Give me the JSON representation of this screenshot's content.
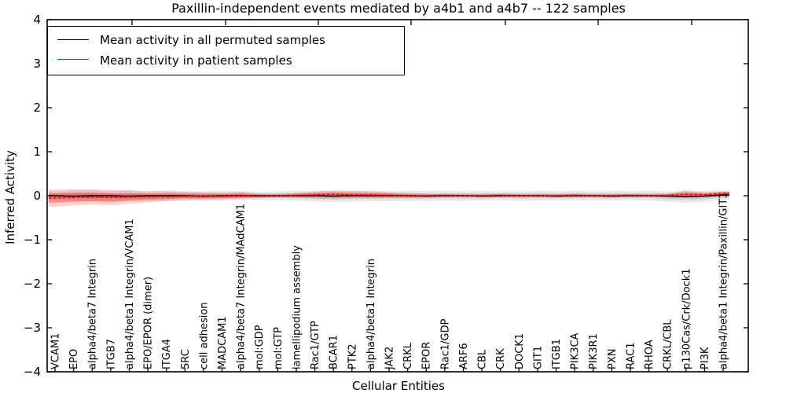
{
  "chart_data": {
    "type": "line",
    "title": "Paxillin-independent events mediated by a4b1 and a4b7 -- 122 samples",
    "xlabel": "Cellular Entities",
    "ylabel": "Inferred Activity",
    "ylim": [
      -4,
      4
    ],
    "ytick_labels": [
      "4",
      "3",
      "2",
      "1",
      "0",
      "−1",
      "−2",
      "−3",
      "−4"
    ],
    "ytick_values": [
      4,
      3,
      2,
      1,
      0,
      -1,
      -2,
      -3,
      -4
    ],
    "grid": false,
    "legend_position": "upper left",
    "legend": [
      {
        "label": "Mean activity in all permuted samples",
        "color": "#000000",
        "style": "solid"
      },
      {
        "label": "Mean activity in patient samples",
        "color": "#ff0000",
        "style": "solid"
      }
    ],
    "colors": {
      "permuted_line": "#000000",
      "patient_line": "#ff0000",
      "permuted_band": "rgba(0,0,0,0.09)",
      "permuted_band_inner": "rgba(0,0,0,0.10)",
      "patient_band": "rgba(255,0,0,0.18)",
      "patient_band_inner": "rgba(255,0,0,0.30)"
    },
    "categories": [
      "VCAM1",
      "EPO",
      "alpha4/beta7 Integrin",
      "ITGB7",
      "alpha4/beta1 Integrin/VCAM1",
      "EPO/EPOR (dimer)",
      "ITGA4",
      "SRC",
      "cell adhesion",
      "MADCAM1",
      "alpha4/beta7 Integrin/MAdCAM1",
      "mol:GDP",
      "mol:GTP",
      "lamellipodium assembly",
      "Rac1/GTP",
      "BCAR1",
      "PTK2",
      "alpha4/beta1 Integrin",
      "JAK2",
      "CRKL",
      "EPOR",
      "Rac1/GDP",
      "ARF6",
      "CBL",
      "CRK",
      "DOCK1",
      "GIT1",
      "ITGB1",
      "PIK3CA",
      "PIK3R1",
      "PXN",
      "RAC1",
      "RHOA",
      "CRKL/CBL",
      "p130Cas/Crk/Dock1",
      "PI3K",
      "alpha4/beta1 Integrin/Paxillin/GIT1"
    ],
    "series": [
      {
        "name": "Mean activity in all permuted samples",
        "values": [
          0,
          -0.01,
          0,
          0,
          -0.01,
          0,
          0,
          0,
          -0.01,
          0,
          0,
          0,
          0,
          0,
          0,
          -0.01,
          0,
          0,
          0,
          0,
          -0.01,
          0,
          0,
          -0.01,
          0,
          0,
          0,
          -0.01,
          0,
          0,
          -0.01,
          0,
          0,
          -0.01,
          -0.02,
          -0.01,
          0.02
        ],
        "band_upper": [
          0.1,
          0.12,
          0.13,
          0.1,
          0.12,
          0.1,
          0.12,
          0.1,
          0.1,
          0.11,
          0.1,
          0.09,
          0.1,
          0.11,
          0.1,
          0.11,
          0.1,
          0.11,
          0.1,
          0.11,
          0.1,
          0.11,
          0.1,
          0.11,
          0.1,
          0.1,
          0.11,
          0.1,
          0.11,
          0.1,
          0.11,
          0.1,
          0.11,
          0.1,
          0.1,
          0.11,
          0.12
        ],
        "band_lower": [
          -0.1,
          -0.12,
          -0.13,
          -0.14,
          -0.12,
          -0.13,
          -0.12,
          -0.11,
          -0.1,
          -0.11,
          -0.1,
          -0.09,
          -0.1,
          -0.11,
          -0.13,
          -0.15,
          -0.14,
          -0.12,
          -0.13,
          -0.12,
          -0.12,
          -0.11,
          -0.12,
          -0.11,
          -0.1,
          -0.12,
          -0.11,
          -0.1,
          -0.11,
          -0.1,
          -0.11,
          -0.1,
          -0.11,
          -0.14,
          -0.16,
          -0.14,
          -0.1
        ]
      },
      {
        "name": "Mean activity in patient samples",
        "values": [
          -0.05,
          -0.04,
          -0.03,
          -0.04,
          -0.03,
          -0.02,
          -0.02,
          -0.01,
          -0.01,
          -0.01,
          0,
          -0.01,
          0,
          0.01,
          0.02,
          0.03,
          0.02,
          0.02,
          0.01,
          0,
          0,
          0.01,
          0,
          0,
          0.01,
          0,
          0,
          0,
          0.01,
          0,
          0,
          0.01,
          0,
          0.01,
          0.03,
          0.02,
          0.06
        ],
        "band_upper": [
          0.14,
          0.15,
          0.14,
          0.13,
          0.12,
          0.1,
          0.1,
          0.09,
          0.08,
          0.07,
          0.09,
          0.05,
          0.04,
          0.06,
          0.1,
          0.12,
          0.11,
          0.1,
          0.08,
          0.06,
          0.05,
          0.04,
          0.04,
          0.04,
          0.05,
          0.04,
          0.04,
          0.04,
          0.05,
          0.04,
          0.04,
          0.04,
          0.04,
          0.05,
          0.12,
          0.08,
          0.09
        ],
        "band_lower": [
          -0.25,
          -0.22,
          -0.2,
          -0.22,
          -0.18,
          -0.15,
          -0.12,
          -0.1,
          -0.1,
          -0.08,
          -0.07,
          -0.05,
          -0.04,
          -0.05,
          -0.06,
          -0.07,
          -0.06,
          -0.06,
          -0.05,
          -0.05,
          -0.04,
          -0.04,
          -0.03,
          -0.03,
          -0.04,
          -0.03,
          -0.03,
          -0.03,
          -0.04,
          -0.03,
          -0.03,
          -0.03,
          -0.03,
          -0.04,
          -0.05,
          -0.04,
          -0.02
        ]
      }
    ]
  }
}
